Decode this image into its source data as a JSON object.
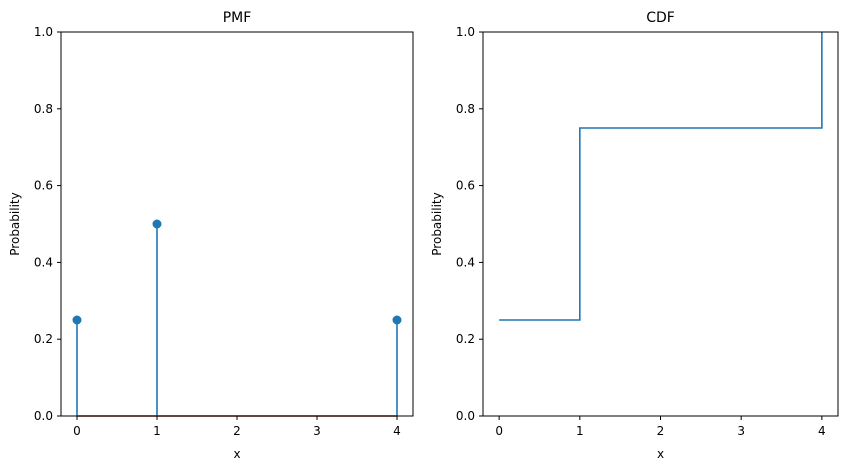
{
  "colors": {
    "series": "#1f77b4",
    "baseline": "#8b1a1a",
    "axes": "#000000",
    "background": "#ffffff"
  },
  "chart_data": [
    {
      "type": "stem",
      "title": "PMF",
      "xlabel": "x",
      "ylabel": "Probability",
      "xlim": [
        -0.2,
        4.2
      ],
      "ylim": [
        0,
        1
      ],
      "xticks": [
        "0",
        "1",
        "2",
        "3",
        "4"
      ],
      "xtick_values": [
        0,
        1,
        2,
        3,
        4
      ],
      "yticks": [
        "0.0",
        "0.2",
        "0.4",
        "0.6",
        "0.8",
        "1.0"
      ],
      "ytick_values": [
        0,
        0.2,
        0.4,
        0.6,
        0.8,
        1.0
      ],
      "grid": false,
      "baseline_y": 0,
      "points": [
        {
          "x": 0,
          "y": 0.25
        },
        {
          "x": 1,
          "y": 0.5
        },
        {
          "x": 4,
          "y": 0.25
        }
      ]
    },
    {
      "type": "line",
      "step": "post",
      "title": "CDF",
      "xlabel": "x",
      "ylabel": "Probability",
      "xlim": [
        -0.2,
        4.2
      ],
      "ylim": [
        0,
        1
      ],
      "xticks": [
        "0",
        "1",
        "2",
        "3",
        "4"
      ],
      "xtick_values": [
        0,
        1,
        2,
        3,
        4
      ],
      "yticks": [
        "0.0",
        "0.2",
        "0.4",
        "0.6",
        "0.8",
        "1.0"
      ],
      "ytick_values": [
        0,
        0.2,
        0.4,
        0.6,
        0.8,
        1.0
      ],
      "grid": false,
      "x": [
        0,
        1,
        4
      ],
      "y": [
        0.25,
        0.75,
        1.0
      ]
    }
  ]
}
